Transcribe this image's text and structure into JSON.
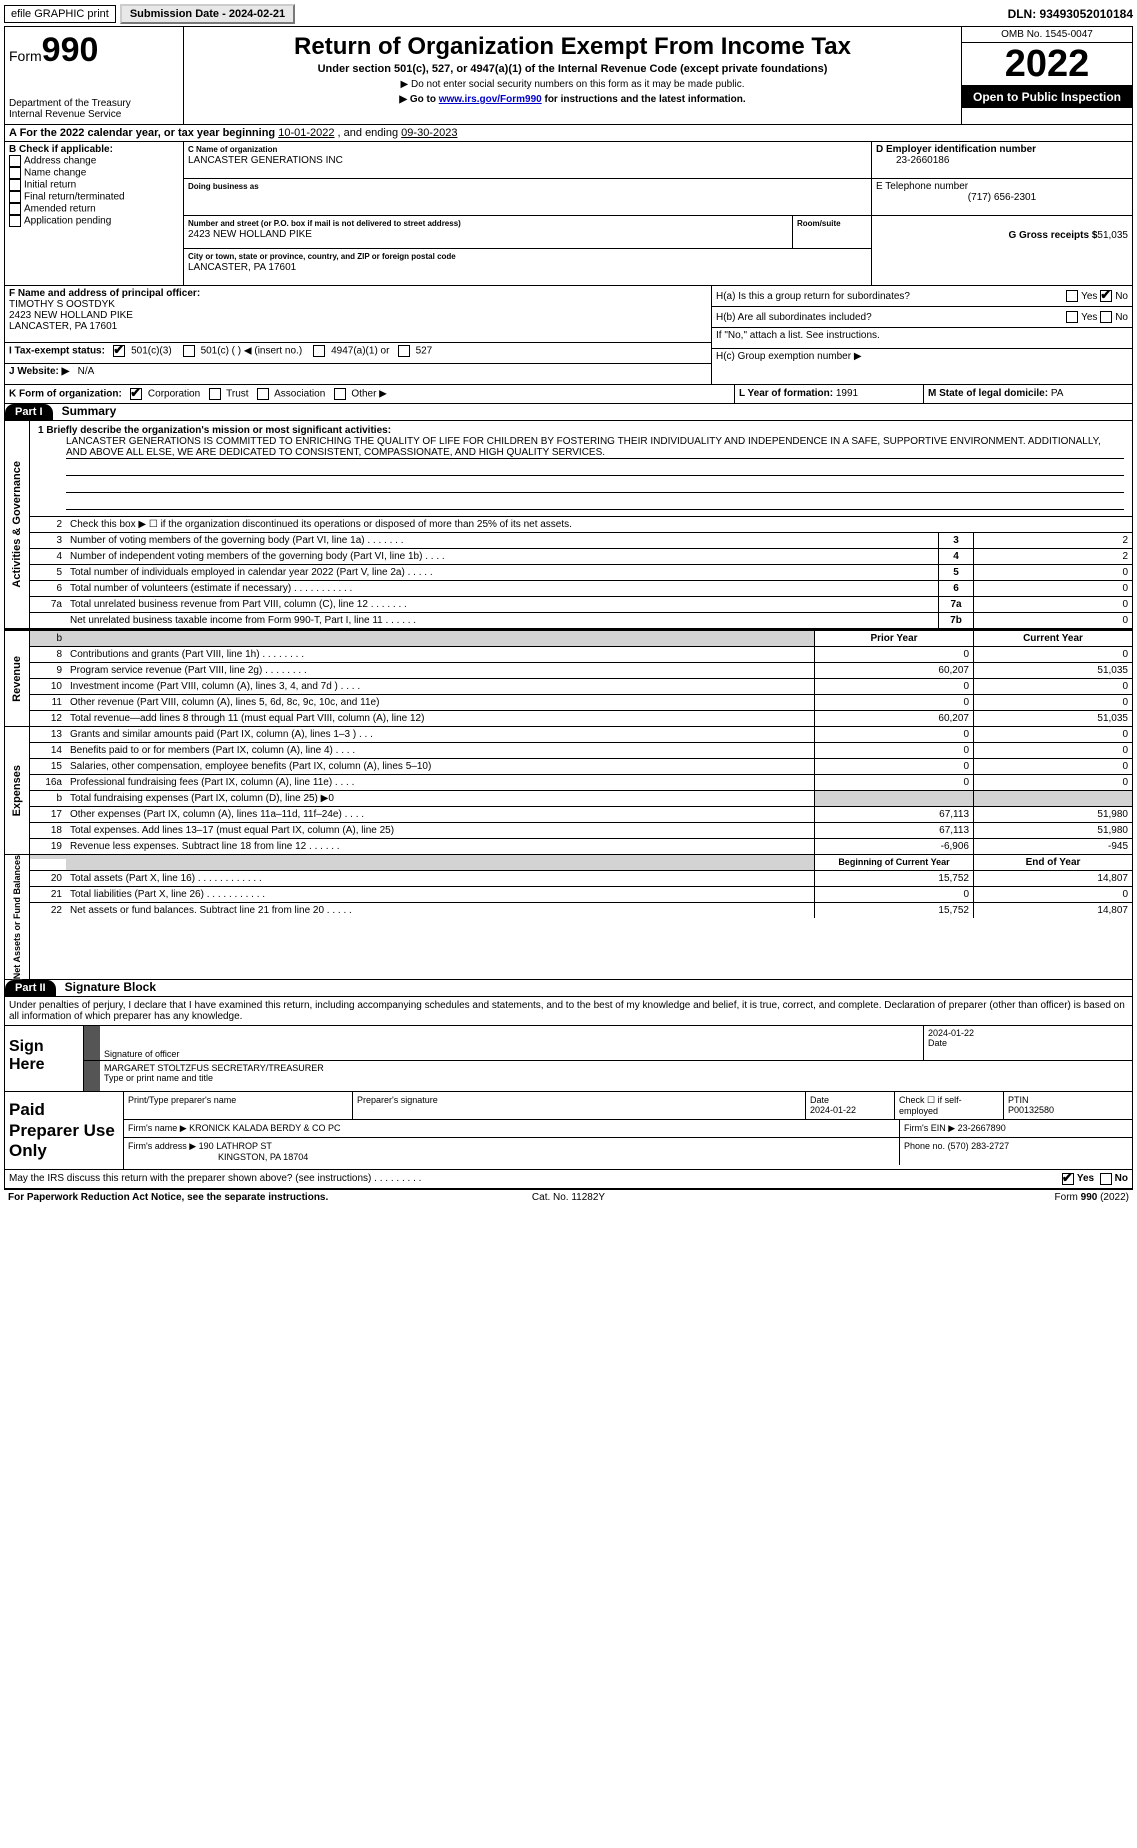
{
  "topbar": {
    "efile": "efile GRAPHIC print",
    "submission_label": "Submission Date - 2024-02-21",
    "dln": "DLN: 93493052010184"
  },
  "header": {
    "form_prefix": "Form",
    "form_number": "990",
    "dept": "Department of the Treasury",
    "irs": "Internal Revenue Service",
    "title": "Return of Organization Exempt From Income Tax",
    "subtitle": "Under section 501(c), 527, or 4947(a)(1) of the Internal Revenue Code (except private foundations)",
    "note1": "▶ Do not enter social security numbers on this form as it may be made public.",
    "note2_pre": "▶ Go to ",
    "note2_link": "www.irs.gov/Form990",
    "note2_post": " for instructions and the latest information.",
    "omb": "OMB No. 1545-0047",
    "year": "2022",
    "otp": "Open to Public Inspection"
  },
  "taxyear": {
    "label_a": "A For the 2022 calendar year, or tax year beginning ",
    "begin": "10-01-2022",
    "mid": " , and ending ",
    "end": "09-30-2023"
  },
  "section_b": {
    "label": "B Check if applicable:",
    "items": [
      "Address change",
      "Name change",
      "Initial return",
      "Final return/terminated",
      "Amended return",
      "Application pending"
    ]
  },
  "section_c": {
    "name_label": "C Name of organization",
    "name": "LANCASTER GENERATIONS INC",
    "dba_label": "Doing business as",
    "dba": "",
    "street_label": "Number and street (or P.O. box if mail is not delivered to street address)",
    "room_label": "Room/suite",
    "street": "2423 NEW HOLLAND PIKE",
    "city_label": "City or town, state or province, country, and ZIP or foreign postal code",
    "city": "LANCASTER, PA  17601"
  },
  "section_d": {
    "ein_label": "D Employer identification number",
    "ein": "23-2660186",
    "tel_label": "E Telephone number",
    "tel": "(717) 656-2301",
    "gross_label": "G Gross receipts $",
    "gross": "51,035"
  },
  "section_f": {
    "label": "F Name and address of principal officer:",
    "name": "TIMOTHY S OOSTDYK",
    "street": "2423 NEW HOLLAND PIKE",
    "city": "LANCASTER, PA  17601"
  },
  "section_h": {
    "ha_label": "H(a)  Is this a group return for subordinates?",
    "hb_label": "H(b)  Are all subordinates included?",
    "hb_note": "If \"No,\" attach a list. See instructions.",
    "hc_label": "H(c)  Group exemption number ▶"
  },
  "section_i": {
    "label": "I  Tax-exempt status:",
    "opt1": "501(c)(3)",
    "opt2": "501(c) (    ) ◀ (insert no.)",
    "opt3": "4947(a)(1) or",
    "opt4": "527"
  },
  "section_j": {
    "label": "J  Website: ▶",
    "value": "N/A"
  },
  "section_k": {
    "label": "K Form of organization:",
    "opts": [
      "Corporation",
      "Trust",
      "Association",
      "Other ▶"
    ]
  },
  "section_l": {
    "label": "L Year of formation:",
    "value": "1991"
  },
  "section_m": {
    "label": "M State of legal domicile:",
    "value": "PA"
  },
  "part1": {
    "bar": "Part I",
    "title": "Summary",
    "line1_label": "1  Briefly describe the organization's mission or most significant activities:",
    "mission": "LANCASTER GENERATIONS IS COMMITTED TO ENRICHING THE QUALITY OF LIFE FOR CHILDREN BY FOSTERING THEIR INDIVIDUALITY AND INDEPENDENCE IN A SAFE, SUPPORTIVE ENVIRONMENT. ADDITIONALLY, AND ABOVE ALL ELSE, WE ARE DEDICATED TO CONSISTENT, COMPASSIONATE, AND HIGH QUALITY SERVICES.",
    "side_gov": "Activities & Governance",
    "side_rev": "Revenue",
    "side_exp": "Expenses",
    "side_net": "Net Assets or Fund Balances",
    "line2": "Check this box ▶ ☐ if the organization discontinued its operations or disposed of more than 25% of its net assets.",
    "lines_gov": [
      {
        "n": "3",
        "t": "Number of voting members of the governing body (Part VI, line 1a)  .    .    .    .    .    .    .",
        "b": "3",
        "v": "2"
      },
      {
        "n": "4",
        "t": "Number of independent voting members of the governing body (Part VI, line 1b)   .    .    .    .",
        "b": "4",
        "v": "2"
      },
      {
        "n": "5",
        "t": "Total number of individuals employed in calendar year 2022 (Part V, line 2a)   .    .    .    .    .",
        "b": "5",
        "v": "0"
      },
      {
        "n": "6",
        "t": "Total number of volunteers (estimate if necessary)    .    .    .    .    .    .    .    .    .    .    .",
        "b": "6",
        "v": "0"
      },
      {
        "n": "7a",
        "t": "Total unrelated business revenue from Part VIII, column (C), line 12    .    .    .    .    .    .    .",
        "b": "7a",
        "v": "0"
      },
      {
        "n": "",
        "t": "Net unrelated business taxable income from Form 990-T, Part I, line 11    .    .    .    .    .    .",
        "b": "7b",
        "v": "0"
      }
    ],
    "col_prior": "Prior Year",
    "col_current": "Current Year",
    "lines_rev": [
      {
        "n": "8",
        "t": "Contributions and grants (Part VIII, line 1h)   .    .    .    .    .    .    .    .",
        "p": "0",
        "c": "0"
      },
      {
        "n": "9",
        "t": "Program service revenue (Part VIII, line 2g)    .    .    .    .    .    .    .    .",
        "p": "60,207",
        "c": "51,035"
      },
      {
        "n": "10",
        "t": "Investment income (Part VIII, column (A), lines 3, 4, and 7d )   .    .    .    .",
        "p": "0",
        "c": "0"
      },
      {
        "n": "11",
        "t": "Other revenue (Part VIII, column (A), lines 5, 6d, 8c, 9c, 10c, and 11e)",
        "p": "0",
        "c": "0"
      },
      {
        "n": "12",
        "t": "Total revenue—add lines 8 through 11 (must equal Part VIII, column (A), line 12)",
        "p": "60,207",
        "c": "51,035"
      }
    ],
    "lines_exp": [
      {
        "n": "13",
        "t": "Grants and similar amounts paid (Part IX, column (A), lines 1–3 )  .    .    .",
        "p": "0",
        "c": "0"
      },
      {
        "n": "14",
        "t": "Benefits paid to or for members (Part IX, column (A), line 4)   .    .    .    .",
        "p": "0",
        "c": "0"
      },
      {
        "n": "15",
        "t": "Salaries, other compensation, employee benefits (Part IX, column (A), lines 5–10)",
        "p": "0",
        "c": "0"
      },
      {
        "n": "16a",
        "t": "Professional fundraising fees (Part IX, column (A), line 11e)    .    .    .    .",
        "p": "0",
        "c": "0"
      },
      {
        "n": "b",
        "t": "Total fundraising expenses (Part IX, column (D), line 25) ▶0",
        "p": "",
        "c": "",
        "grey": true
      },
      {
        "n": "17",
        "t": "Other expenses (Part IX, column (A), lines 11a–11d, 11f–24e)   .    .    .    .",
        "p": "67,113",
        "c": "51,980"
      },
      {
        "n": "18",
        "t": "Total expenses. Add lines 13–17 (must equal Part IX, column (A), line 25)",
        "p": "67,113",
        "c": "51,980"
      },
      {
        "n": "19",
        "t": "Revenue less expenses. Subtract line 18 from line 12   .    .    .    .    .    .",
        "p": "-6,906",
        "c": "-945"
      }
    ],
    "col_begin": "Beginning of Current Year",
    "col_end": "End of Year",
    "lines_net": [
      {
        "n": "20",
        "t": "Total assets (Part X, line 16)   .    .    .    .    .    .    .    .    .    .    .    .",
        "p": "15,752",
        "c": "14,807"
      },
      {
        "n": "21",
        "t": "Total liabilities (Part X, line 26)   .    .    .    .    .    .    .    .    .    .    .",
        "p": "0",
        "c": "0"
      },
      {
        "n": "22",
        "t": "Net assets or fund balances. Subtract line 21 from line 20    .    .    .    .    .",
        "p": "15,752",
        "c": "14,807"
      }
    ]
  },
  "part2": {
    "bar": "Part II",
    "title": "Signature Block",
    "penalty": "Under penalties of perjury, I declare that I have examined this return, including accompanying schedules and statements, and to the best of my knowledge and belief, it is true, correct, and complete. Declaration of preparer (other than officer) is based on all information of which preparer has any knowledge."
  },
  "sign": {
    "here": "Sign Here",
    "sig_label": "Signature of officer",
    "date_label": "Date",
    "date": "2024-01-22",
    "name": "MARGARET STOLTZFUS  SECRETARY/TREASURER",
    "name_label": "Type or print name and title"
  },
  "prep": {
    "label": "Paid Preparer Use Only",
    "c1": "Print/Type preparer's name",
    "c2": "Preparer's signature",
    "c3": "Date",
    "date": "2024-01-22",
    "c4": "Check ☐ if self-employed",
    "c5_label": "PTIN",
    "c5": "P00132580",
    "firm_name_label": "Firm's name    ▶",
    "firm_name": "KRONICK KALADA BERDY & CO PC",
    "firm_ein_label": "Firm's EIN ▶",
    "firm_ein": "23-2667890",
    "firm_addr_label": "Firm's address ▶",
    "firm_addr1": "190 LATHROP ST",
    "firm_addr2": "KINGSTON, PA  18704",
    "phone_label": "Phone no.",
    "phone": "(570) 283-2727"
  },
  "discuss": {
    "text": "May the IRS discuss this return with the preparer shown above? (see instructions)    .    .    .    .    .    .    .    .    .",
    "yes": "Yes",
    "no": "No"
  },
  "footer": {
    "left": "For Paperwork Reduction Act Notice, see the separate instructions.",
    "mid": "Cat. No. 11282Y",
    "right": "Form 990 (2022)"
  }
}
